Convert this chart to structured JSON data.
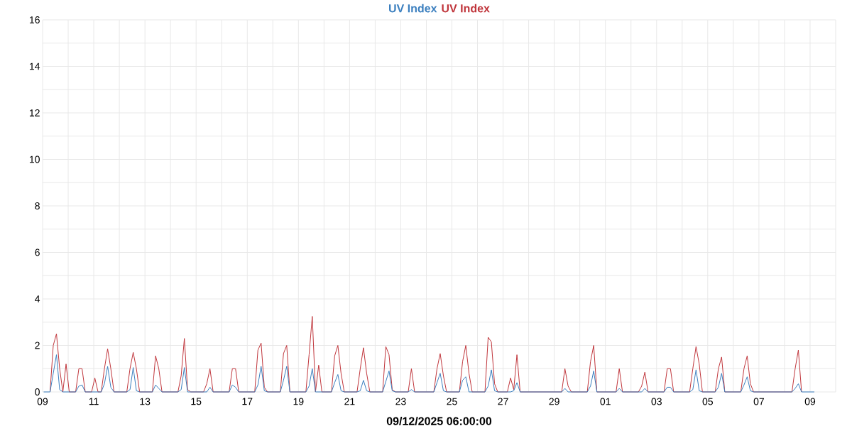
{
  "chart_data": {
    "type": "line",
    "xlabel": "09/12/2025 06:00:00",
    "legend": "top",
    "grid": true,
    "xlim": [
      "2025-11-09",
      "2025-12-10"
    ],
    "xticks": [
      {
        "value": "2025-11-09",
        "label": "09"
      },
      {
        "value": "2025-11-10",
        "label": null
      },
      {
        "value": "2025-11-11",
        "label": "11"
      },
      {
        "value": "2025-11-12",
        "label": null
      },
      {
        "value": "2025-11-13",
        "label": "13"
      },
      {
        "value": "2025-11-14",
        "label": null
      },
      {
        "value": "2025-11-15",
        "label": "15"
      },
      {
        "value": "2025-11-16",
        "label": null
      },
      {
        "value": "2025-11-17",
        "label": "17"
      },
      {
        "value": "2025-11-18",
        "label": null
      },
      {
        "value": "2025-11-19",
        "label": "19"
      },
      {
        "value": "2025-11-20",
        "label": null
      },
      {
        "value": "2025-11-21",
        "label": "21"
      },
      {
        "value": "2025-11-22",
        "label": null
      },
      {
        "value": "2025-11-23",
        "label": "23"
      },
      {
        "value": "2025-11-24",
        "label": null
      },
      {
        "value": "2025-11-25",
        "label": "25"
      },
      {
        "value": "2025-11-26",
        "label": null
      },
      {
        "value": "2025-11-27",
        "label": "27"
      },
      {
        "value": "2025-11-28",
        "label": null
      },
      {
        "value": "2025-11-29",
        "label": "29"
      },
      {
        "value": "2025-11-30",
        "label": null
      },
      {
        "value": "2025-12-01",
        "label": "01"
      },
      {
        "value": "2025-12-02",
        "label": null
      },
      {
        "value": "2025-12-03",
        "label": "03"
      },
      {
        "value": "2025-12-04",
        "label": null
      },
      {
        "value": "2025-12-05",
        "label": "05"
      },
      {
        "value": "2025-12-06",
        "label": null
      },
      {
        "value": "2025-12-07",
        "label": "07"
      },
      {
        "value": "2025-12-08",
        "label": null
      },
      {
        "value": "2025-12-09",
        "label": "09"
      },
      {
        "value": "2025-12-10",
        "label": null
      }
    ],
    "ylim": [
      0,
      16
    ],
    "yticks": [
      0,
      {
        "value": 1,
        "label": null
      },
      2,
      {
        "value": 3,
        "label": null
      },
      4,
      {
        "value": 5,
        "label": null
      },
      6,
      {
        "value": 7,
        "label": null
      },
      8,
      {
        "value": 9,
        "label": null
      },
      10,
      {
        "value": 11,
        "label": null
      },
      12,
      {
        "value": 13,
        "label": null
      },
      14,
      {
        "value": 15,
        "label": null
      },
      16
    ],
    "x": [
      "2025-11-09T01:00",
      "2025-11-09T07:00",
      "2025-11-09T10:00",
      "2025-11-09T13:00",
      "2025-11-09T16:00",
      "2025-11-09T19:00",
      "2025-11-09T22:00",
      "2025-11-10T01:00",
      "2025-11-10T07:00",
      "2025-11-10T10:00",
      "2025-11-10T13:00",
      "2025-11-10T16:00",
      "2025-11-10T22:00",
      "2025-11-11T01:00",
      "2025-11-11T04:00",
      "2025-11-11T07:00",
      "2025-11-11T10:00",
      "2025-11-11T13:00",
      "2025-11-11T16:00",
      "2025-11-11T19:00",
      "2025-11-12T07:00",
      "2025-11-12T10:00",
      "2025-11-12T13:00",
      "2025-11-12T16:00",
      "2025-11-12T19:00",
      "2025-11-13T07:00",
      "2025-11-13T10:00",
      "2025-11-13T13:00",
      "2025-11-13T16:00",
      "2025-11-14T07:00",
      "2025-11-14T10:00",
      "2025-11-14T13:00",
      "2025-11-14T16:00",
      "2025-11-14T19:00",
      "2025-11-15T07:00",
      "2025-11-15T10:00",
      "2025-11-15T13:00",
      "2025-11-15T16:00",
      "2025-11-16T07:00",
      "2025-11-16T10:00",
      "2025-11-16T13:00",
      "2025-11-16T16:00",
      "2025-11-17T07:00",
      "2025-11-17T10:00",
      "2025-11-17T13:00",
      "2025-11-17T16:00",
      "2025-11-17T19:00",
      "2025-11-18T07:00",
      "2025-11-18T10:00",
      "2025-11-18T13:00",
      "2025-11-18T16:00",
      "2025-11-19T07:00",
      "2025-11-19T10:00",
      "2025-11-19T13:00",
      "2025-11-19T16:00",
      "2025-11-19T19:00",
      "2025-11-19T22:00",
      "2025-11-20T07:00",
      "2025-11-20T10:00",
      "2025-11-20T13:00",
      "2025-11-20T16:00",
      "2025-11-20T19:00",
      "2025-11-21T07:00",
      "2025-11-21T10:00",
      "2025-11-21T13:00",
      "2025-11-21T16:00",
      "2025-11-21T19:00",
      "2025-11-22T07:00",
      "2025-11-22T10:00",
      "2025-11-22T13:00",
      "2025-11-22T16:00",
      "2025-11-22T19:00",
      "2025-11-23T07:00",
      "2025-11-23T10:00",
      "2025-11-23T13:00",
      "2025-11-24T07:00",
      "2025-11-24T10:00",
      "2025-11-24T13:00",
      "2025-11-24T16:00",
      "2025-11-24T19:00",
      "2025-11-25T07:00",
      "2025-11-25T10:00",
      "2025-11-25T13:00",
      "2025-11-25T16:00",
      "2025-11-25T19:00",
      "2025-11-26T07:00",
      "2025-11-26T10:00",
      "2025-11-26T13:00",
      "2025-11-26T16:00",
      "2025-11-26T19:00",
      "2025-11-27T04:00",
      "2025-11-27T07:00",
      "2025-11-27T10:00",
      "2025-11-27T13:00",
      "2025-11-27T16:00",
      "2025-11-29T07:00",
      "2025-11-29T10:00",
      "2025-11-29T13:00",
      "2025-11-29T16:00",
      "2025-11-30T07:00",
      "2025-11-30T10:00",
      "2025-11-30T13:00",
      "2025-11-30T16:00",
      "2025-12-01T10:00",
      "2025-12-01T13:00",
      "2025-12-01T16:00",
      "2025-12-02T07:00",
      "2025-12-02T10:00",
      "2025-12-02T13:00",
      "2025-12-02T16:00",
      "2025-12-03T07:00",
      "2025-12-03T10:00",
      "2025-12-03T13:00",
      "2025-12-03T16:00",
      "2025-12-04T07:00",
      "2025-12-04T10:00",
      "2025-12-04T13:00",
      "2025-12-04T16:00",
      "2025-12-04T19:00",
      "2025-12-05T07:00",
      "2025-12-05T10:00",
      "2025-12-05T13:00",
      "2025-12-05T16:00",
      "2025-12-06T07:00",
      "2025-12-06T10:00",
      "2025-12-06T13:00",
      "2025-12-06T16:00",
      "2025-12-06T19:00",
      "2025-12-08T07:00",
      "2025-12-08T10:00",
      "2025-12-08T13:00",
      "2025-12-08T16:00",
      "2025-12-09T04:00"
    ],
    "series": [
      {
        "name": "UV Index",
        "color": "#c0363c",
        "values": [
          null,
          0,
          2.0,
          2.5,
          1.0,
          0,
          1.2,
          0,
          0,
          1.0,
          1.0,
          0,
          0,
          0.6,
          0,
          0,
          1.0,
          1.85,
          1.0,
          0,
          0,
          1.0,
          1.7,
          1.0,
          0,
          0,
          1.55,
          1.0,
          0,
          0,
          0.7,
          2.3,
          0.1,
          0,
          0,
          0.35,
          1.0,
          0,
          0,
          1.0,
          1.0,
          0,
          0,
          1.8,
          2.1,
          0.2,
          0,
          0,
          1.65,
          2.0,
          0,
          0,
          1.6,
          3.25,
          0,
          1.15,
          0,
          0,
          1.55,
          2.0,
          0.8,
          0,
          0,
          1.0,
          1.9,
          0.8,
          0,
          0,
          1.95,
          1.6,
          0.1,
          0,
          0,
          1.0,
          0,
          0,
          1.0,
          1.65,
          0.7,
          0,
          0,
          1.3,
          2.0,
          0.8,
          0,
          0,
          2.35,
          2.15,
          0.35,
          0,
          0,
          0.6,
          0.1,
          1.6,
          0,
          0,
          1.0,
          0.25,
          0,
          0,
          1.3,
          2.0,
          0,
          0,
          1.0,
          0,
          0,
          0.25,
          0.85,
          0,
          0,
          1.0,
          1.0,
          0,
          0,
          1.0,
          1.95,
          1.2,
          0,
          0,
          1.0,
          1.5,
          0,
          0,
          1.0,
          1.55,
          0.35,
          0,
          0,
          1.0,
          1.8,
          0,
          null
        ]
      },
      {
        "name": "UV Index",
        "color": "#3b7fbf",
        "values": [
          0,
          0,
          0.8,
          1.6,
          0.1,
          0,
          0,
          0,
          0,
          0.25,
          0.3,
          0,
          0,
          0,
          0,
          0,
          0.35,
          1.1,
          0.2,
          0,
          0,
          0.1,
          1.05,
          0.05,
          0,
          0,
          0.3,
          0.15,
          0,
          0,
          0.1,
          1.05,
          0,
          0,
          0,
          0,
          0.2,
          0,
          0,
          0.3,
          0.2,
          0,
          0,
          0.3,
          1.1,
          0.05,
          0,
          0,
          0.5,
          1.1,
          0,
          0,
          0.25,
          1.0,
          0,
          0,
          0,
          0,
          0.4,
          0.75,
          0.05,
          0,
          0,
          0.05,
          0.5,
          0.05,
          0,
          0,
          0.45,
          0.9,
          0.05,
          0,
          0,
          0.1,
          0,
          0,
          0.4,
          0.8,
          0.05,
          0,
          0,
          0.5,
          0.65,
          0,
          0,
          0,
          0.25,
          0.95,
          0.05,
          0,
          0,
          0,
          0.05,
          0.4,
          0,
          0,
          0.15,
          0,
          0,
          0,
          0.25,
          0.9,
          0,
          0,
          0.15,
          0,
          0,
          0,
          0.15,
          0,
          0,
          0.2,
          0.2,
          0,
          0,
          0.1,
          0.95,
          0.05,
          0,
          0,
          0.2,
          0.8,
          0,
          0,
          0.3,
          0.65,
          0.05,
          0,
          0,
          0.15,
          0.35,
          0,
          0
        ]
      }
    ]
  }
}
